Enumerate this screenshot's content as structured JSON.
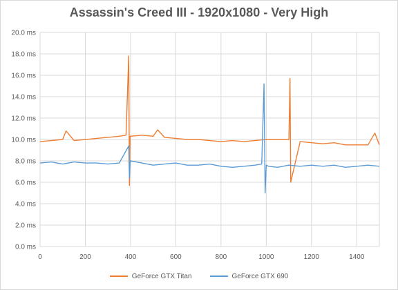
{
  "chart_data": {
    "type": "line",
    "title": "Assassin's Creed III - 1920x1080 - Very High",
    "xlabel": "",
    "ylabel": "",
    "xlim": [
      0,
      1500
    ],
    "ylim": [
      0,
      20
    ],
    "x_ticks": [
      "0",
      "200",
      "400",
      "600",
      "800",
      "1000",
      "1200",
      "1400"
    ],
    "y_ticks": [
      "0.0 ms",
      "2.0 ms",
      "4.0 ms",
      "6.0 ms",
      "8.0 ms",
      "10.0 ms",
      "12.0 ms",
      "14.0 ms",
      "16.0 ms",
      "18.0 ms",
      "20.0 ms"
    ],
    "grid": true,
    "legend_position": "bottom",
    "series": [
      {
        "name": "GeForce GTX Titan",
        "color": "#ED7D31",
        "x": [
          0,
          50,
          100,
          115,
          150,
          200,
          250,
          300,
          350,
          380,
          392,
          395,
          398,
          400,
          450,
          500,
          520,
          550,
          600,
          650,
          700,
          750,
          800,
          850,
          900,
          950,
          1000,
          1050,
          1100,
          1105,
          1108,
          1150,
          1200,
          1250,
          1300,
          1350,
          1400,
          1450,
          1480,
          1500
        ],
        "values": [
          9.8,
          9.9,
          10.0,
          10.8,
          9.9,
          10.0,
          10.1,
          10.2,
          10.3,
          10.4,
          17.8,
          5.7,
          10.3,
          10.3,
          10.4,
          10.3,
          10.9,
          10.2,
          10.1,
          10.0,
          10.0,
          9.9,
          9.8,
          9.9,
          9.8,
          9.9,
          10.0,
          10.0,
          10.0,
          15.7,
          6.0,
          9.8,
          9.7,
          9.6,
          9.7,
          9.5,
          9.5,
          9.5,
          10.6,
          9.5
        ]
      },
      {
        "name": "GeForce GTX 690",
        "color": "#5B9BD5",
        "x": [
          0,
          50,
          100,
          150,
          200,
          250,
          300,
          350,
          392,
          395,
          398,
          400,
          450,
          500,
          550,
          600,
          650,
          700,
          750,
          800,
          850,
          900,
          950,
          980,
          990,
          995,
          1000,
          1010,
          1050,
          1100,
          1150,
          1200,
          1250,
          1300,
          1350,
          1400,
          1450,
          1500
        ],
        "values": [
          7.8,
          7.9,
          7.7,
          7.9,
          7.8,
          7.8,
          7.7,
          7.8,
          9.4,
          6.4,
          7.8,
          8.0,
          7.8,
          7.6,
          7.7,
          7.8,
          7.6,
          7.6,
          7.7,
          7.5,
          7.4,
          7.5,
          7.6,
          7.7,
          15.2,
          5.0,
          7.6,
          7.5,
          7.4,
          7.6,
          7.5,
          7.6,
          7.5,
          7.6,
          7.4,
          7.5,
          7.6,
          7.5
        ]
      }
    ]
  }
}
